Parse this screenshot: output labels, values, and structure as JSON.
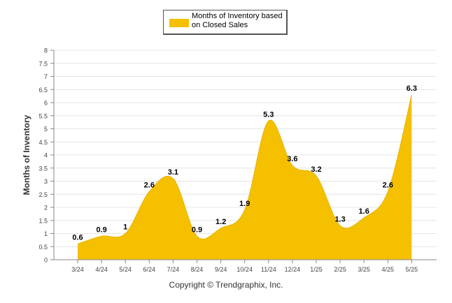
{
  "chart_data": {
    "type": "area",
    "categories": [
      "3/24",
      "4/24",
      "5/24",
      "6/24",
      "7/24",
      "8/24",
      "9/24",
      "10/24",
      "11/24",
      "12/24",
      "1/25",
      "2/25",
      "3/25",
      "4/25",
      "5/25"
    ],
    "series": [
      {
        "name": "Months of Inventory based on Closed Sales",
        "values": [
          0.6,
          0.9,
          1,
          2.6,
          3.1,
          0.9,
          1.2,
          1.9,
          5.3,
          3.6,
          3.2,
          1.3,
          1.6,
          2.6,
          6.3
        ],
        "color": "#f5c000"
      }
    ],
    "ylabel": "Months of Inventory",
    "xlabel": "",
    "ylim": [
      0,
      8
    ],
    "yticks": [
      "0",
      "0.5",
      "1",
      "1.5",
      "2",
      "2.5",
      "3",
      "3.5",
      "4",
      "4.5",
      "5",
      "5.5",
      "6",
      "6.5",
      "7",
      "7.5",
      "8"
    ],
    "grid": true,
    "legend_position": "top-center"
  },
  "legend": {
    "label": "Months of Inventory based on Closed Sales"
  },
  "footer": {
    "copyright": "Copyright © Trendgraphix, Inc."
  }
}
